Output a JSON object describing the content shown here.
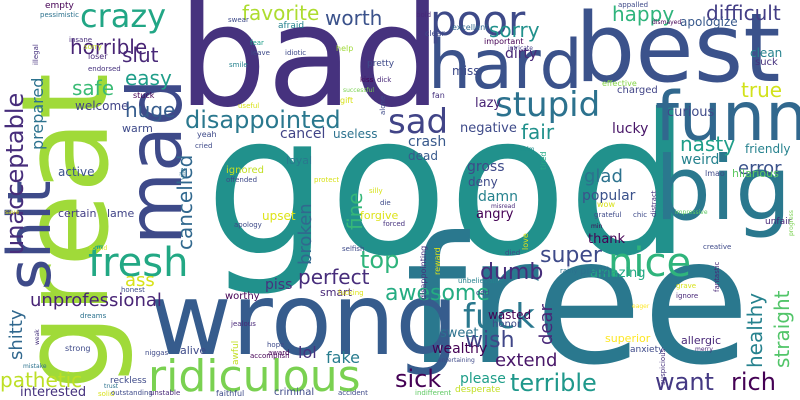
{
  "words": [
    {
      "text": "good",
      "color": "#21918c"
    },
    {
      "text": "bad",
      "color": "#46327e"
    },
    {
      "text": "free",
      "color": "#2a788e"
    },
    {
      "text": "great",
      "color": "#a0da39"
    },
    {
      "text": "best",
      "color": "#3b528b"
    },
    {
      "text": "wrong",
      "color": "#365c8d"
    },
    {
      "text": "hard",
      "color": "#3b528b"
    },
    {
      "text": "funny",
      "color": "#31688e"
    },
    {
      "text": "big",
      "color": "#2a788e"
    },
    {
      "text": "mad",
      "color": "#3e4a89"
    },
    {
      "text": "shit",
      "color": "#3e4a89"
    },
    {
      "text": "ridiculous",
      "color": "#7ad151"
    },
    {
      "text": "poor",
      "color": "#3e4a89"
    },
    {
      "text": "fresh",
      "color": "#22a884"
    },
    {
      "text": "nice",
      "color": "#2fb47c"
    },
    {
      "text": "stupid",
      "color": "#2c728e"
    },
    {
      "text": "crazy",
      "color": "#21a685"
    },
    {
      "text": "sad",
      "color": "#414487"
    },
    {
      "text": "fuck",
      "color": "#2a788e"
    },
    {
      "text": "disappointed",
      "color": "#2a788e"
    },
    {
      "text": "unacceptable",
      "color": "#472d7b"
    },
    {
      "text": "pathetic",
      "color": "#bddf26"
    },
    {
      "text": "favorite",
      "color": "#addc30"
    },
    {
      "text": "worth",
      "color": "#3b528b"
    },
    {
      "text": "horrible",
      "color": "#482475"
    },
    {
      "text": "sorry",
      "color": "#21918c"
    },
    {
      "text": "happy",
      "color": "#2fb47c"
    },
    {
      "text": "difficult",
      "color": "#433e85"
    },
    {
      "text": "slut",
      "color": "#482878"
    },
    {
      "text": "easy",
      "color": "#1f9e89"
    },
    {
      "text": "safe",
      "color": "#3bbb75"
    },
    {
      "text": "huge",
      "color": "#365c8d"
    },
    {
      "text": "super",
      "color": "#3e4a89"
    },
    {
      "text": "dumb",
      "color": "#472d7b"
    },
    {
      "text": "top",
      "color": "#2fb47c"
    },
    {
      "text": "awesome",
      "color": "#25ac82"
    },
    {
      "text": "wish",
      "color": "#404688"
    },
    {
      "text": "sick",
      "color": "#440154"
    },
    {
      "text": "terrible",
      "color": "#1f988b"
    },
    {
      "text": "want",
      "color": "#443983"
    },
    {
      "text": "rich",
      "color": "#440154"
    },
    {
      "text": "healthy",
      "color": "#26828e"
    },
    {
      "text": "straight",
      "color": "#52c569"
    },
    {
      "text": "true",
      "color": "#d2e21b"
    },
    {
      "text": "nasty",
      "color": "#1f9e89"
    },
    {
      "text": "error",
      "color": "#3b528b"
    },
    {
      "text": "perfect",
      "color": "#472d7b"
    },
    {
      "text": "fine",
      "color": "#35b779"
    },
    {
      "text": "broken",
      "color": "#31688e"
    },
    {
      "text": "cancelled",
      "color": "#31688e"
    },
    {
      "text": "unprofessional",
      "color": "#482475"
    },
    {
      "text": "shitty",
      "color": "#31688e"
    },
    {
      "text": "prepared",
      "color": "#2c728e"
    },
    {
      "text": "fair",
      "color": "#21918c"
    },
    {
      "text": "glad",
      "color": "#2c728e"
    },
    {
      "text": "extend",
      "color": "#481668"
    },
    {
      "text": "ass",
      "color": "#d8e219"
    },
    {
      "text": "dear",
      "color": "#482878"
    },
    {
      "text": "lol",
      "color": "#46327e"
    },
    {
      "text": "fake",
      "color": "#287c8e"
    },
    {
      "text": "please",
      "color": "#1f9e89"
    },
    {
      "text": "interested",
      "color": "#46327e"
    },
    {
      "text": "dirty",
      "color": "#482878"
    },
    {
      "text": "miss",
      "color": "#3e4a89"
    },
    {
      "text": "lazy",
      "color": "#482475"
    },
    {
      "text": "lucky",
      "color": "#481668"
    },
    {
      "text": "negative",
      "color": "#3e4a89"
    },
    {
      "text": "crash",
      "color": "#38598c"
    },
    {
      "text": "dead",
      "color": "#38598c"
    },
    {
      "text": "gross",
      "color": "#3e4a89"
    },
    {
      "text": "deny",
      "color": "#3e4a89"
    },
    {
      "text": "damn",
      "color": "#26828e"
    },
    {
      "text": "angry",
      "color": "#440154"
    },
    {
      "text": "popular",
      "color": "#3b528b"
    },
    {
      "text": "weird",
      "color": "#26828e"
    },
    {
      "text": "friendly",
      "color": "#26828e"
    },
    {
      "text": "thank",
      "color": "#440154"
    },
    {
      "text": "amazing",
      "color": "#22a884"
    },
    {
      "text": "curious",
      "color": "#3e4a89"
    },
    {
      "text": "clean",
      "color": "#26828e"
    },
    {
      "text": "suck",
      "color": "#46327e"
    },
    {
      "text": "apologize",
      "color": "#38598c"
    },
    {
      "text": "cancel",
      "color": "#414487"
    },
    {
      "text": "useless",
      "color": "#2c728e"
    },
    {
      "text": "loyal",
      "color": "#2a788e"
    },
    {
      "text": "welcome",
      "color": "#414487"
    },
    {
      "text": "warm",
      "color": "#3e4a89"
    },
    {
      "text": "active",
      "color": "#3b528b"
    },
    {
      "text": "certain",
      "color": "#433e85"
    },
    {
      "text": "lame",
      "color": "#414487"
    },
    {
      "text": "piss",
      "color": "#46327e"
    },
    {
      "text": "smart",
      "color": "#482878"
    },
    {
      "text": "wealthy",
      "color": "#440154"
    },
    {
      "text": "wasted",
      "color": "#440154"
    },
    {
      "text": "honor",
      "color": "#3e4a89"
    },
    {
      "text": "sweet",
      "color": "#2c728e"
    },
    {
      "text": "alive",
      "color": "#3e4a89"
    },
    {
      "text": "upset",
      "color": "#dde318"
    },
    {
      "text": "forgive",
      "color": "#dde318"
    },
    {
      "text": "hilarious",
      "color": "#5ec962"
    },
    {
      "text": "superior",
      "color": "#fde725"
    },
    {
      "text": "allergic",
      "color": "#482878"
    },
    {
      "text": "anxiety",
      "color": "#3e4a89"
    },
    {
      "text": "ignored",
      "color": "#c2df23"
    },
    {
      "text": "proud",
      "color": "#2c728e"
    },
    {
      "text": "worthy",
      "color": "#440154"
    },
    {
      "text": "charged",
      "color": "#414487"
    },
    {
      "text": "effective",
      "color": "#86d549"
    },
    {
      "text": "empty",
      "color": "#440154"
    },
    {
      "text": "pessimistic",
      "color": "#2c728e"
    },
    {
      "text": "swear",
      "color": "#3e4a89"
    },
    {
      "text": "afraid",
      "color": "#26828e"
    },
    {
      "text": "bold",
      "color": "#482878"
    },
    {
      "text": "appalled",
      "color": "#3e4a89"
    },
    {
      "text": "dismayed",
      "color": "#440154"
    },
    {
      "text": "insane",
      "color": "#472d7b"
    },
    {
      "text": "sorry",
      "color": "#c2df23"
    },
    {
      "text": "clear",
      "color": "#3e4a89"
    },
    {
      "text": "excellent",
      "color": "#31688e"
    },
    {
      "text": "fear",
      "color": "#1f9e89"
    },
    {
      "text": "important",
      "color": "#440154"
    },
    {
      "text": "intricate",
      "color": "#433e85"
    },
    {
      "text": "loser",
      "color": "#482878"
    },
    {
      "text": "endorsed",
      "color": "#46327e"
    },
    {
      "text": "leave",
      "color": "#3e4a89"
    },
    {
      "text": "idiotic",
      "color": "#3e4a89"
    },
    {
      "text": "help",
      "color": "#a0da39"
    },
    {
      "text": "pretty",
      "color": "#3e4a89"
    },
    {
      "text": "fan",
      "color": "#46327e"
    },
    {
      "text": "smile",
      "color": "#26828e"
    },
    {
      "text": "illegal",
      "color": "#46327e"
    },
    {
      "text": "kiss",
      "color": "#440154"
    },
    {
      "text": "dick",
      "color": "#482878"
    },
    {
      "text": "stuck",
      "color": "#440154"
    },
    {
      "text": "gift",
      "color": "#d8e219"
    },
    {
      "text": "useful",
      "color": "#d8e219"
    },
    {
      "text": "alone",
      "color": "#3e4a89"
    },
    {
      "text": "successful",
      "color": "#7ad151"
    },
    {
      "text": "calm",
      "color": "#21918c"
    },
    {
      "text": "cried",
      "color": "#3e4a89"
    },
    {
      "text": "yeah",
      "color": "#3e4a89"
    },
    {
      "text": "offended",
      "color": "#3e4a89"
    },
    {
      "text": "protect",
      "color": "#d8e219"
    },
    {
      "text": "silly",
      "color": "#d8e219"
    },
    {
      "text": "die",
      "color": "#3e4a89"
    },
    {
      "text": "forced",
      "color": "#46327e"
    },
    {
      "text": "vile",
      "color": "#2c728e"
    },
    {
      "text": "apology",
      "color": "#3e4a89"
    },
    {
      "text": "selfish",
      "color": "#3e4a89"
    },
    {
      "text": "tired",
      "color": "#22a884"
    },
    {
      "text": "misread",
      "color": "#482878"
    },
    {
      "text": "wow",
      "color": "#d8e219"
    },
    {
      "text": "grateful",
      "color": "#3e4a89"
    },
    {
      "text": "chic",
      "color": "#3e4a89"
    },
    {
      "text": "min",
      "color": "#440154"
    },
    {
      "text": "distract",
      "color": "#46327e"
    },
    {
      "text": "impressive",
      "color": "#5ec962"
    },
    {
      "text": "lmao",
      "color": "#3e4a89"
    },
    {
      "text": "progress",
      "color": "#7ad151"
    },
    {
      "text": "unfair",
      "color": "#482878"
    },
    {
      "text": "creative",
      "color": "#3e4a89"
    },
    {
      "text": "grave",
      "color": "#d8e219"
    },
    {
      "text": "fantastic",
      "color": "#482878"
    },
    {
      "text": "ignore",
      "color": "#482878"
    },
    {
      "text": "eager",
      "color": "#fde725"
    },
    {
      "text": "merry",
      "color": "#482878"
    },
    {
      "text": "suspicious",
      "color": "#46327e"
    },
    {
      "text": "disappointing",
      "color": "#46327e"
    },
    {
      "text": "reward",
      "color": "#dde318"
    },
    {
      "text": "died",
      "color": "#3e4a89"
    },
    {
      "text": "love",
      "color": "#d8e219"
    },
    {
      "text": "rainy",
      "color": "#2c728e"
    },
    {
      "text": "unbelievable",
      "color": "#26828e"
    },
    {
      "text": "odd",
      "color": "#3e4a89"
    },
    {
      "text": "entertaining",
      "color": "#3e4a89"
    },
    {
      "text": "fucking",
      "color": "#dde318"
    },
    {
      "text": "honest",
      "color": "#3e4a89"
    },
    {
      "text": "dreams",
      "color": "#2c728e"
    },
    {
      "text": "jealous",
      "color": "#482878"
    },
    {
      "text": "hope",
      "color": "#3e4a89"
    },
    {
      "text": "awful",
      "color": "#c2df23"
    },
    {
      "text": "award",
      "color": "#440154"
    },
    {
      "text": "accomplish",
      "color": "#440154"
    },
    {
      "text": "niggas",
      "color": "#3e4a89"
    },
    {
      "text": "weak",
      "color": "#46327e"
    },
    {
      "text": "strong",
      "color": "#3e4a89"
    },
    {
      "text": "mistake",
      "color": "#2c728e"
    },
    {
      "text": "reckless",
      "color": "#3e4a89"
    },
    {
      "text": "trust",
      "color": "#2c728e"
    },
    {
      "text": "solid",
      "color": "#d8e219"
    },
    {
      "text": "outstanding",
      "color": "#3e4a89"
    },
    {
      "text": "unstable",
      "color": "#482878"
    },
    {
      "text": "faithful",
      "color": "#3e4a89"
    },
    {
      "text": "criminal",
      "color": "#3e4a89"
    },
    {
      "text": "accident",
      "color": "#3e4a89"
    },
    {
      "text": "indifferent",
      "color": "#5ec962"
    },
    {
      "text": "desperate",
      "color": "#c2df23"
    },
    {
      "text": "sound",
      "color": "#dde318"
    },
    {
      "text": "save",
      "color": "#dde318"
    }
  ]
}
